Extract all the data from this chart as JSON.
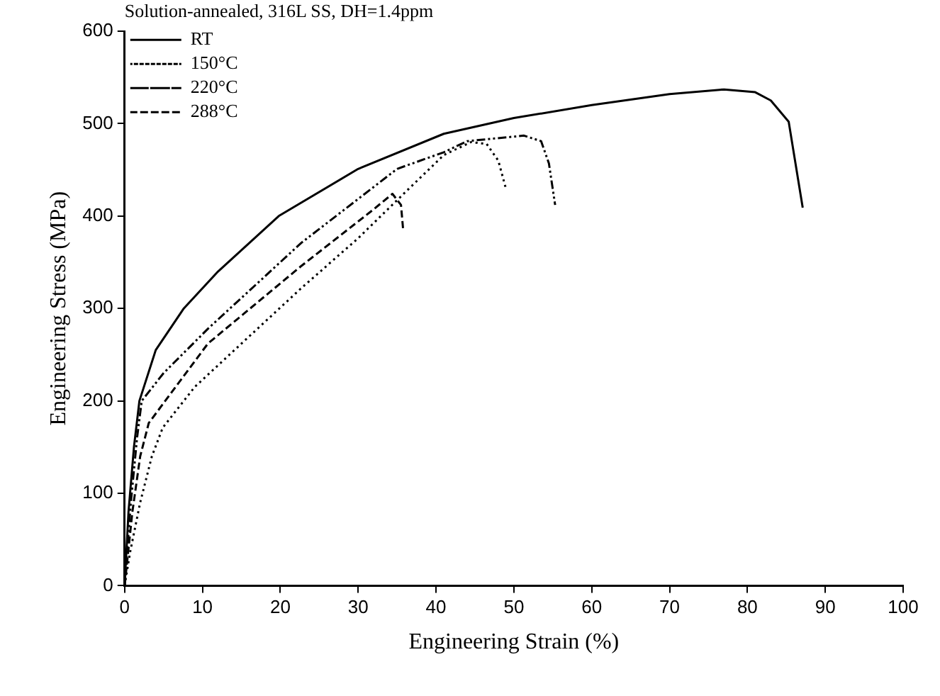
{
  "chart_data": {
    "type": "line",
    "xlabel": "Engineering Strain (%)",
    "ylabel": "Engineering Stress (MPa)",
    "legend_title": "Solution-annealed, 316L SS, DH=1.4ppm",
    "xlim": [
      0,
      100
    ],
    "xticks": [
      0,
      10,
      20,
      30,
      40,
      50,
      60,
      70,
      80,
      90,
      100
    ],
    "ylim": [
      0,
      600
    ],
    "yticks": [
      0,
      100,
      200,
      300,
      400,
      500,
      600
    ],
    "grid": false,
    "legend": "top left",
    "marker": "none",
    "series": [
      {
        "name": "RT",
        "color": "#000000",
        "line_style": "solid",
        "x": [
          0,
          0.5,
          1.2,
          1.9,
          4,
          7.6,
          12,
          19.8,
          30,
          41,
          50,
          60,
          70,
          77,
          81,
          83,
          85.3,
          87.1
        ],
        "values": [
          0,
          80,
          150,
          200,
          255,
          300,
          340,
          400,
          451,
          489,
          506,
          520,
          532,
          537,
          534,
          525,
          502,
          409
        ]
      },
      {
        "name": "150°C",
        "color": "#000000",
        "line_style": "dotted",
        "x": [
          0,
          0.7,
          2,
          3.5,
          4.9,
          9,
          13.6,
          22.7,
          30,
          36.2,
          41,
          44.5,
          46.5,
          48,
          49
        ],
        "values": [
          0,
          36,
          90,
          140,
          171,
          215,
          251,
          322,
          376,
          427,
          466,
          480,
          478,
          460,
          429
        ]
      },
      {
        "name": "220°C",
        "color": "#000000",
        "line_style": "dashdot",
        "x": [
          0,
          0.8,
          1.6,
          2.2,
          5,
          10.7,
          22.7,
          35,
          41,
          44,
          51.3,
          53.5,
          54.5,
          55.3
        ],
        "values": [
          0,
          90,
          160,
          200,
          230,
          278,
          371,
          451,
          469,
          481,
          487,
          481,
          457,
          412
        ]
      },
      {
        "name": "288°C",
        "color": "#000000",
        "line_style": "dashed",
        "x": [
          0,
          1,
          2,
          3.1,
          10.7,
          22.7,
          31.8,
          34.4,
          35.5,
          35.8
        ],
        "values": [
          0,
          80,
          140,
          176,
          262,
          346,
          406,
          424,
          412,
          383
        ]
      }
    ]
  }
}
